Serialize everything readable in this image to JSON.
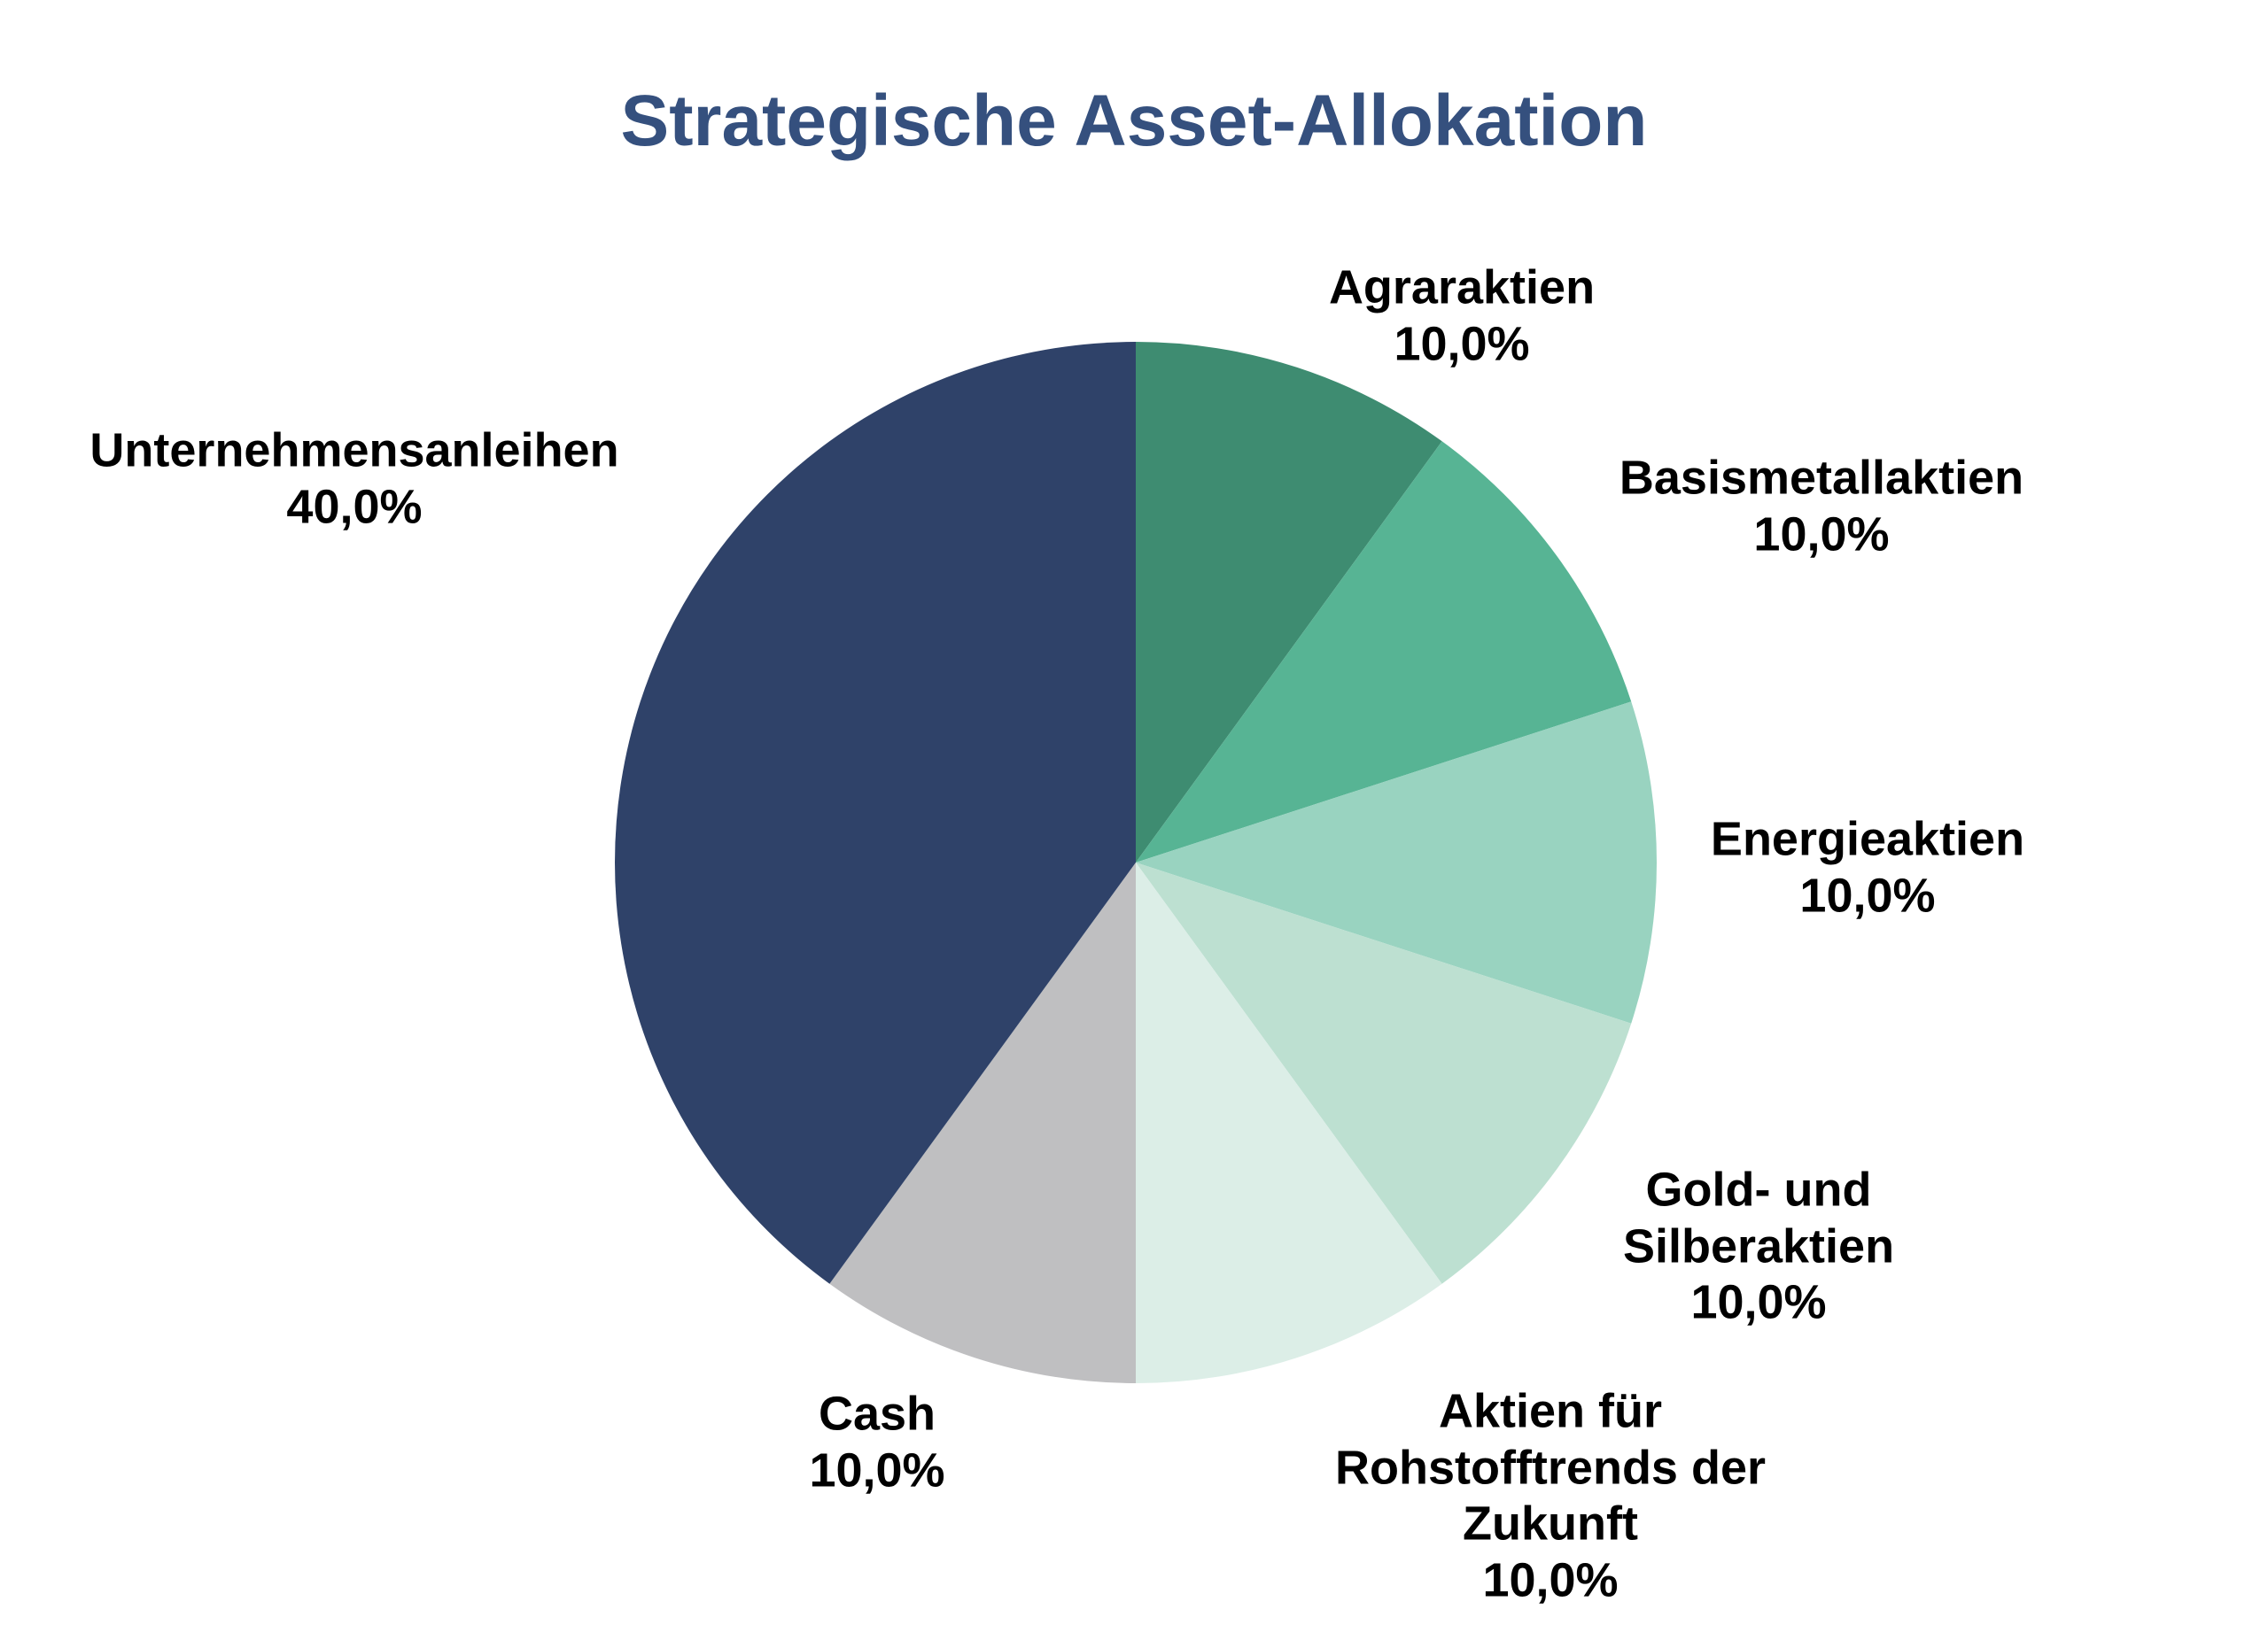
{
  "page": {
    "background": "#FFFFFF"
  },
  "title": {
    "text": "Strategische Asset-Allokation",
    "color": "#35507E"
  },
  "chart_data": {
    "type": "pie",
    "title": "Strategische Asset-Allokation",
    "direction": "clockwise",
    "start_angle_deg": 0,
    "units": "percent",
    "total": 100.0,
    "legend": "none",
    "label_color": "#000000",
    "labels": [
      "Agraraktien",
      "Basismetallaktien",
      "Energieaktien",
      "Gold- und Silberaktien",
      "Aktien für Rohstofftrends der Zukunft",
      "Cash",
      "Unternehmensanleihen"
    ],
    "values": [
      10.0,
      10.0,
      10.0,
      10.0,
      10.0,
      10.0,
      40.0
    ],
    "slices": [
      {
        "label": "Agraraktien",
        "value": 10.0,
        "percent_text": "10,0%",
        "color": "#3E8C71",
        "label_lines": [
          "Agraraktien",
          "10,0%"
        ]
      },
      {
        "label": "Basismetallaktien",
        "value": 10.0,
        "percent_text": "10,0%",
        "color": "#57B494",
        "label_lines": [
          "Basismetallaktien",
          "10,0%"
        ]
      },
      {
        "label": "Energieaktien",
        "value": 10.0,
        "percent_text": "10,0%",
        "color": "#99D3C0",
        "label_lines": [
          "Energieaktien",
          "10,0%"
        ]
      },
      {
        "label": "Gold- und Silberaktien",
        "value": 10.0,
        "percent_text": "10,0%",
        "color": "#BDE0D1",
        "label_lines": [
          "Gold- und",
          "Silberaktien",
          "10,0%"
        ]
      },
      {
        "label": "Aktien für Rohstofftrends der Zukunft",
        "value": 10.0,
        "percent_text": "10,0%",
        "color": "#DCEEE7",
        "label_lines": [
          "Aktien für",
          "Rohstofftrends der",
          "Zukunft",
          "10,0%"
        ]
      },
      {
        "label": "Cash",
        "value": 10.0,
        "percent_text": "10,0%",
        "color": "#BFBFC1",
        "label_lines": [
          "Cash",
          "10,0%"
        ]
      },
      {
        "label": "Unternehmensanleihen",
        "value": 40.0,
        "percent_text": "40,0%",
        "color": "#2F4269",
        "label_lines": [
          "Unternehmensanleihen",
          "40,0%"
        ]
      }
    ]
  }
}
